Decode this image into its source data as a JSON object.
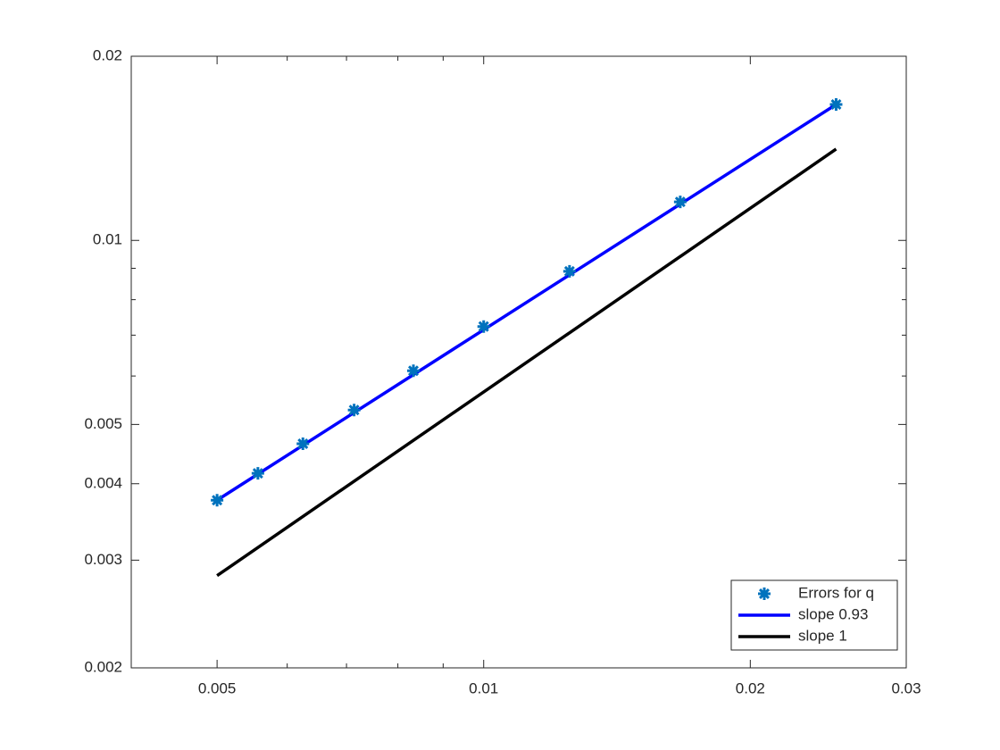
{
  "chart_data": {
    "type": "line",
    "xscale": "log",
    "yscale": "log",
    "xlim": [
      0.004,
      0.03
    ],
    "ylim": [
      0.002,
      0.02
    ],
    "xticks": [
      0.005,
      0.01,
      0.02,
      0.03
    ],
    "xminorticks": [
      0.006,
      0.007,
      0.008,
      0.009
    ],
    "yticks": [
      0.002,
      0.003,
      0.004,
      0.005,
      0.01,
      0.02
    ],
    "yminorticks": [
      0.006,
      0.007,
      0.008,
      0.009
    ],
    "legend": "lower right",
    "series": [
      {
        "name": "Errors for q",
        "mode": "markers",
        "color": "#0072bd",
        "x": [
          0.005,
          0.00556,
          0.00625,
          0.00714,
          0.00833,
          0.01,
          0.0125,
          0.01667,
          0.025
        ],
        "values": [
          0.00376,
          0.00416,
          0.00465,
          0.00528,
          0.00612,
          0.00723,
          0.0089,
          0.01156,
          0.01668
        ]
      },
      {
        "name": "slope 0.93",
        "mode": "line",
        "color": "#0000ff",
        "x": [
          0.005,
          0.025
        ],
        "values": [
          0.00376,
          0.01668
        ]
      },
      {
        "name": "slope 1",
        "mode": "line",
        "color": "#000000",
        "x": [
          0.005,
          0.025
        ],
        "values": [
          0.00283,
          0.0141
        ]
      }
    ]
  }
}
